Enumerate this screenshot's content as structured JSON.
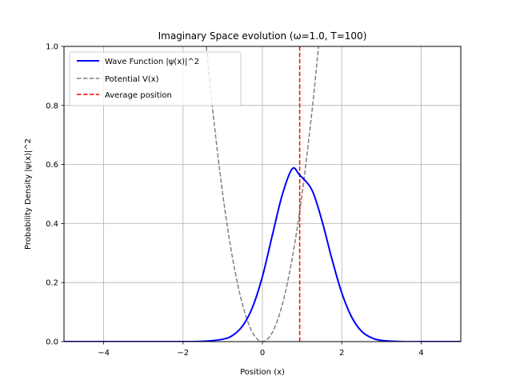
{
  "chart_data": {
    "type": "line",
    "title": "Imaginary Space evolution (ω=1.0, T=100)",
    "xlabel": "Position (x)",
    "ylabel": "Probability Density |ψ(x)|^2",
    "xlim": [
      -5,
      5
    ],
    "ylim": [
      0,
      1.0
    ],
    "xticks": [
      -4,
      -2,
      0,
      2,
      4
    ],
    "xtick_labels": [
      "−4",
      "−2",
      "0",
      "2",
      "4"
    ],
    "yticks": [
      0.0,
      0.2,
      0.4,
      0.6,
      0.8,
      1.0
    ],
    "ytick_labels": [
      "0.0",
      "0.2",
      "0.4",
      "0.6",
      "0.8",
      "1.0"
    ],
    "grid": true,
    "legend_position": "top-left",
    "series": [
      {
        "name": "Wave Function |ψ(x)|^2",
        "kind": "solid",
        "color": "#0000ff",
        "x": [
          -5,
          -4,
          -3,
          -2.5,
          -2,
          -1.5,
          -1,
          -0.75,
          -0.5,
          -0.25,
          0,
          0.25,
          0.5,
          0.75,
          0.94,
          1.25,
          1.5,
          1.75,
          2,
          2.25,
          2.5,
          2.75,
          3,
          3.5,
          4,
          5
        ],
        "y": [
          0.0,
          0.0,
          0.0,
          0.0,
          0.0,
          0.001,
          0.008,
          0.021,
          0.053,
          0.116,
          0.22,
          0.36,
          0.497,
          0.585,
          0.564,
          0.513,
          0.41,
          0.281,
          0.165,
          0.083,
          0.035,
          0.013,
          0.004,
          0.0,
          0.0,
          0.0
        ]
      },
      {
        "name": "Potential V(x)",
        "kind": "dashed",
        "color": "#808080",
        "x": [
          -1.414,
          -1.25,
          -1.0,
          -0.75,
          -0.5,
          -0.25,
          0,
          0.25,
          0.5,
          0.75,
          1.0,
          1.25,
          1.414
        ],
        "y": [
          1.0,
          0.781,
          0.5,
          0.281,
          0.125,
          0.031,
          0.0,
          0.031,
          0.125,
          0.281,
          0.5,
          0.781,
          1.0
        ]
      },
      {
        "name": "Average position",
        "kind": "vline",
        "color": "#ff0000",
        "x_value": 0.94
      }
    ]
  }
}
